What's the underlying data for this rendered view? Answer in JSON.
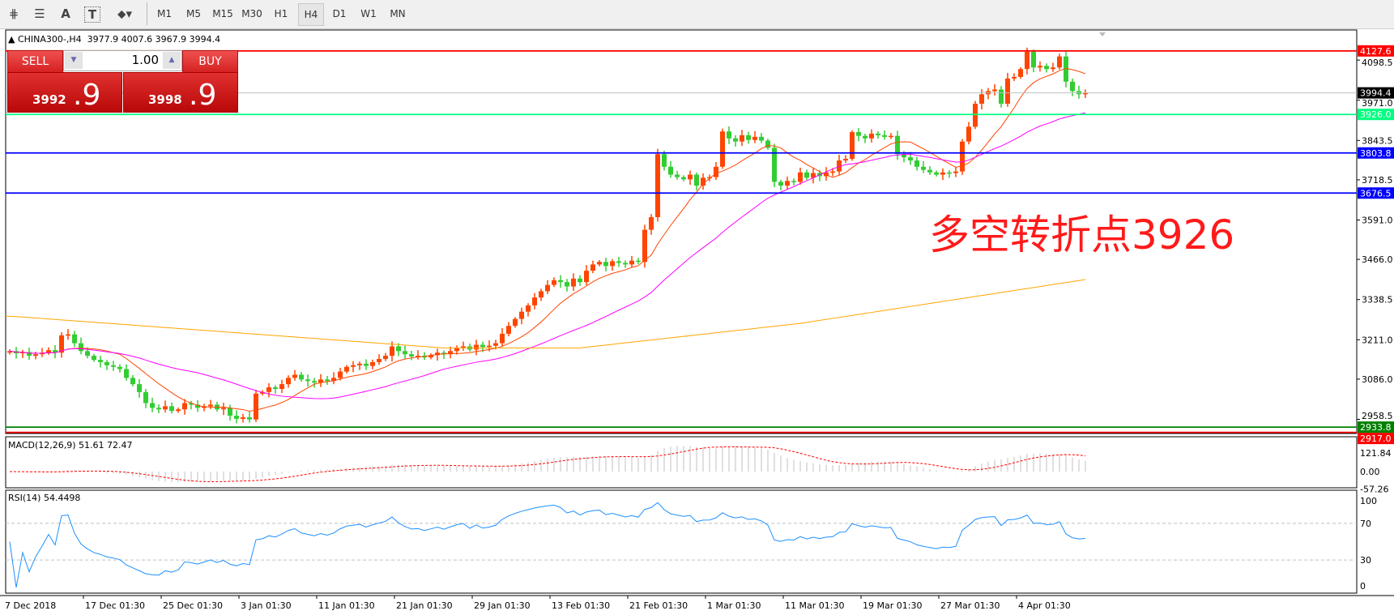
{
  "toolbar": {
    "icons": [
      "elliott-wave-icon",
      "fibonacci-icon",
      "text-icon",
      "text-label-icon",
      "arrows-icon"
    ],
    "text_icon_label": "A",
    "text_label_icon_label": "T",
    "timeframes": [
      "M1",
      "M5",
      "M15",
      "M30",
      "H1",
      "H4",
      "D1",
      "W1",
      "MN"
    ],
    "active_timeframe": "H4"
  },
  "chart_header": {
    "symbol": "CHINA300-,H4",
    "ohlc": "3977.9 4007.6 3967.9 3994.4"
  },
  "trade_panel": {
    "sell_label": "SELL",
    "buy_label": "BUY",
    "lot": "1.00",
    "sell_price_main": "3992",
    "sell_price_big": ".9",
    "buy_price_main": "3998",
    "buy_price_big": ".9",
    "colors": {
      "panel": "#d42020"
    }
  },
  "annotation": "多空转折点3926",
  "indicators": {
    "macd_label": "MACD(12,26,9) 51.61 72.47",
    "rsi_label": "RSI(14) 54.4498"
  },
  "chart_data": {
    "type": "candlestick",
    "symbol": "CHINA300-",
    "timeframe": "H4",
    "price_axis": {
      "range": [
        2913.5,
        4194
      ],
      "ticks": [
        "4098.5",
        "3971.0",
        "3843.5",
        "3718.5",
        "3591.0",
        "3466.0",
        "3338.5",
        "3211.0",
        "3086.0",
        "2958.5"
      ]
    },
    "time_labels": [
      "7 Dec 2018",
      "17 Dec 01:30",
      "25 Dec 01:30",
      "3 Jan 01:30",
      "11 Jan 01:30",
      "21 Jan 01:30",
      "29 Jan 01:30",
      "13 Feb 01:30",
      "21 Feb 01:30",
      "1 Mar 01:30",
      "11 Mar 01:30",
      "19 Mar 01:30",
      "27 Mar 01:30",
      "4 Apr 01:30"
    ],
    "closes": [
      3175,
      3168,
      3172,
      3160,
      3165,
      3170,
      3178,
      3170,
      3225,
      3228,
      3200,
      3175,
      3160,
      3147,
      3140,
      3130,
      3125,
      3118,
      3090,
      3070,
      3045,
      3010,
      2995,
      2990,
      3000,
      2985,
      2990,
      3010,
      3005,
      2995,
      3000,
      3005,
      2990,
      2995,
      2970,
      2960,
      2965,
      2958,
      3040,
      3045,
      3060,
      3055,
      3070,
      3090,
      3100,
      3085,
      3080,
      3075,
      3085,
      3080,
      3090,
      3110,
      3125,
      3130,
      3135,
      3128,
      3140,
      3150,
      3160,
      3190,
      3175,
      3165,
      3158,
      3160,
      3155,
      3162,
      3170,
      3165,
      3175,
      3185,
      3190,
      3180,
      3195,
      3188,
      3192,
      3200,
      3230,
      3255,
      3277,
      3300,
      3320,
      3345,
      3365,
      3385,
      3400,
      3394,
      3380,
      3405,
      3394,
      3430,
      3450,
      3458,
      3445,
      3460,
      3455,
      3450,
      3462,
      3458,
      3560,
      3600,
      3800,
      3760,
      3735,
      3727,
      3720,
      3735,
      3700,
      3725,
      3727,
      3760,
      3872,
      3850,
      3840,
      3860,
      3845,
      3855,
      3843,
      3820,
      3712,
      3700,
      3715,
      3712,
      3742,
      3725,
      3740,
      3730,
      3742,
      3745,
      3780,
      3785,
      3870,
      3858,
      3850,
      3865,
      3860,
      3855,
      3858,
      3800,
      3790,
      3780,
      3760,
      3750,
      3742,
      3735,
      3742,
      3740,
      3745,
      3840,
      3887,
      3960,
      3990,
      4000,
      4005,
      3960,
      4040,
      4045,
      4070,
      4125,
      4075,
      4080,
      4070,
      4075,
      4110,
      4030,
      4000,
      3990,
      3994.4
    ],
    "slow_ma_points": [
      [
        0,
        3286
      ],
      [
        67,
        3185
      ],
      [
        88,
        3185
      ],
      [
        122,
        3263
      ],
      [
        166,
        3402
      ]
    ],
    "levels": [
      {
        "value": "4127.6",
        "color": "#ff0000"
      },
      {
        "value": "3994.4",
        "color": "#000000",
        "line": "#c0c0c0"
      },
      {
        "value": "3926.0",
        "color": "#00ff7f"
      },
      {
        "value": "3803.8",
        "color": "#0000ff"
      },
      {
        "value": "3676.5",
        "color": "#0000ff"
      },
      {
        "value": "2933.8",
        "color": "#008000"
      },
      {
        "value": "2917.0",
        "color": "#ff0000"
      }
    ],
    "colors": {
      "up": "#ff4500",
      "down": "#32cd32",
      "fast_ma": "#ff4500",
      "mid_ma": "#ff00ff",
      "slow_ma": "#ffa500",
      "rsi": "#1e90ff",
      "macd_signal": "#ff0000",
      "macd_hist": "#c0c0c0"
    },
    "macd": {
      "axis_ticks": [
        "121.84",
        "0.00",
        "-57.26"
      ]
    },
    "rsi": {
      "axis_ticks": [
        "100",
        "70",
        "30",
        "0"
      ],
      "levels": [
        70,
        30
      ]
    }
  }
}
